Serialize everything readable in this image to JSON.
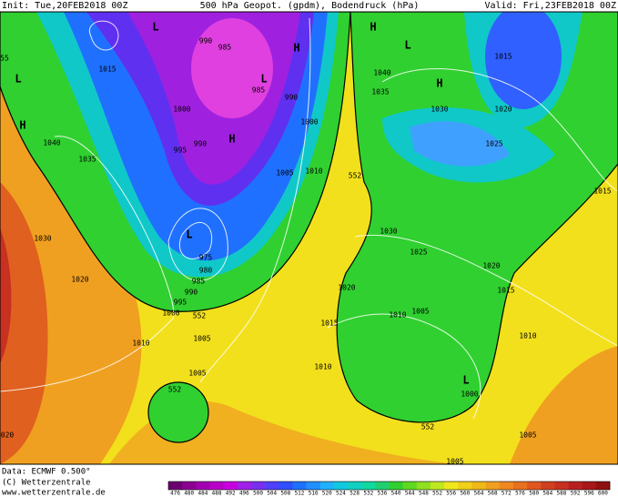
{
  "header": {
    "init": "Init: Tue,20FEB2018 00Z",
    "title": "500 hPa Geopot. (gpdm), Bodendruck (hPa)",
    "valid": "Valid: Fri,23FEB2018 00Z"
  },
  "footer": {
    "source": "Data: ECMWF  0.500°",
    "copyright": "(C) Wetterzentrale",
    "url": "www.wetterzentrale.de"
  },
  "isobar_labels": [
    "1015",
    "990",
    "985",
    "1000",
    "985",
    "990",
    "1000",
    "995",
    "990",
    "1005",
    "1010",
    "552",
    "1040",
    "1035",
    "1030",
    "1020",
    "975",
    "980",
    "985",
    "990",
    "995",
    "1000",
    "552",
    "1005",
    "1010",
    "1005",
    "552",
    "1010",
    "1015",
    "1020",
    "1030",
    "1025",
    "1020",
    "1015",
    "1010",
    "1005",
    "1010",
    "1000",
    "552",
    "1005",
    "1005",
    "020",
    "1040",
    "1035",
    "1030",
    "1025",
    "1020",
    "1015",
    "1015",
    "55"
  ],
  "pressure_centers": [
    "L",
    "L",
    "H",
    "H",
    "H",
    "H",
    "L",
    "H",
    "L",
    "L",
    "L"
  ],
  "colorbar": {
    "ticks": [
      "476",
      "480",
      "484",
      "488",
      "492",
      "496",
      "500",
      "504",
      "508",
      "512",
      "516",
      "520",
      "524",
      "528",
      "532",
      "536",
      "540",
      "544",
      "548",
      "552",
      "556",
      "560",
      "564",
      "568",
      "572",
      "576",
      "580",
      "584",
      "588",
      "592",
      "596",
      "600"
    ]
  }
}
